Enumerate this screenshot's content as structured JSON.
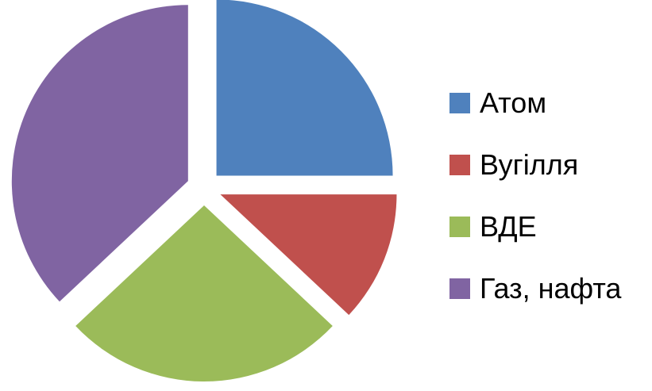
{
  "chart_data": {
    "type": "pie",
    "categories": [
      "Атом",
      "Вугілля",
      "ВДЕ",
      "Газ, нафта"
    ],
    "values": [
      25,
      12,
      26,
      37
    ],
    "colors": [
      "#4F81BD",
      "#C0504D",
      "#9BBB59",
      "#8064A2"
    ],
    "exploded": true,
    "start_angle": "12 o'clock",
    "direction": "clockwise",
    "title": "",
    "legend": {
      "position": "right",
      "items": [
        "Атом",
        "Вугілля",
        "ВДЕ",
        "Газ, нафта"
      ]
    }
  }
}
